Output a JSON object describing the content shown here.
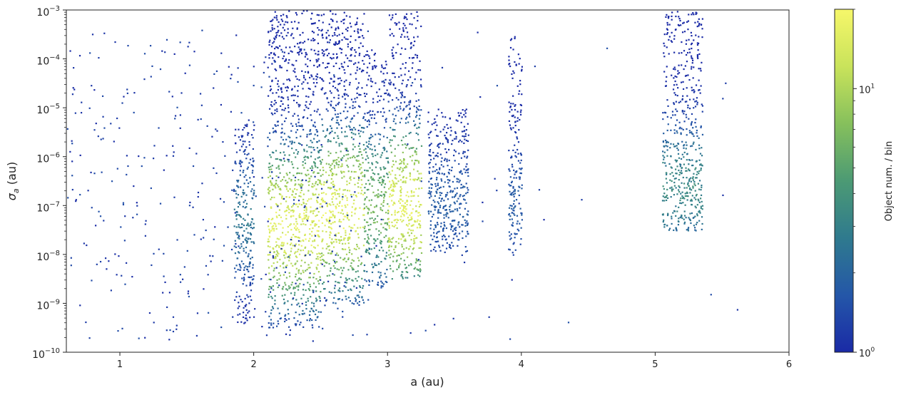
{
  "chart_data": {
    "type": "heatmap",
    "title": "",
    "xlabel": "a (au)",
    "ylabel_base": "σ",
    "ylabel_sub": "a",
    "ylabel_unit": " (au)",
    "xscale": "linear",
    "yscale": "log",
    "xlim": [
      0.6,
      6.0
    ],
    "ylim": [
      1e-10,
      0.001
    ],
    "xticks": [
      {
        "value": 1,
        "label": "1"
      },
      {
        "value": 2,
        "label": "2"
      },
      {
        "value": 3,
        "label": "3"
      },
      {
        "value": 4,
        "label": "4"
      },
      {
        "value": 5,
        "label": "5"
      },
      {
        "value": 6,
        "label": "6"
      }
    ],
    "yticks": [
      {
        "value": 1e-10,
        "base": "10",
        "exp": "−10"
      },
      {
        "value": 1e-09,
        "base": "10",
        "exp": "−9"
      },
      {
        "value": 1e-08,
        "base": "10",
        "exp": "−8"
      },
      {
        "value": 1e-07,
        "base": "10",
        "exp": "−7"
      },
      {
        "value": 1e-06,
        "base": "10",
        "exp": "−6"
      },
      {
        "value": 1e-05,
        "base": "10",
        "exp": "−5"
      },
      {
        "value": 0.0001,
        "base": "10",
        "exp": "−4"
      },
      {
        "value": 0.001,
        "base": "10",
        "exp": "−3"
      }
    ],
    "grid": false,
    "colorbar": {
      "label": "Object num. / bin",
      "scale": "log",
      "range": [
        1,
        20
      ],
      "colormap": [
        "#1a2aa6",
        "#2457a8",
        "#2f7a8e",
        "#4c9a74",
        "#86c05c",
        "#c9e35b",
        "#f6f76a"
      ],
      "ticks": [
        {
          "value": 1,
          "base": "10",
          "exp": "0"
        },
        {
          "value": 10,
          "base": "10",
          "exp": "1"
        }
      ]
    },
    "clusters": [
      {
        "a_range": [
          1.85,
          2.0
        ],
        "log_sigma_range": [
          -9.4,
          -5.2
        ],
        "peak_log_sigma": -7.3,
        "peak_count": 3
      },
      {
        "a_range": [
          2.1,
          2.5
        ],
        "log_sigma_range": [
          -9.5,
          -3.0
        ],
        "peak_log_sigma": -7.4,
        "peak_count": 20
      },
      {
        "a_range": [
          2.5,
          2.82
        ],
        "log_sigma_range": [
          -9.0,
          -3.0
        ],
        "peak_log_sigma": -7.1,
        "peak_count": 20
      },
      {
        "a_range": [
          2.82,
          3.0
        ],
        "log_sigma_range": [
          -8.7,
          -3.8
        ],
        "peak_log_sigma": -7.0,
        "peak_count": 8
      },
      {
        "a_range": [
          3.0,
          3.25
        ],
        "log_sigma_range": [
          -8.5,
          -3.0
        ],
        "peak_log_sigma": -7.0,
        "peak_count": 20
      },
      {
        "a_range": [
          3.3,
          3.6
        ],
        "log_sigma_range": [
          -8.0,
          -5.0
        ],
        "peak_log_sigma": -7.0,
        "peak_count": 2
      },
      {
        "a_range": [
          3.9,
          4.0
        ],
        "log_sigma_range": [
          -8.0,
          -3.5
        ],
        "peak_log_sigma": -7.0,
        "peak_count": 2
      },
      {
        "a_range": [
          5.05,
          5.35
        ],
        "log_sigma_range": [
          -7.5,
          -3.0
        ],
        "peak_log_sigma": -6.6,
        "peak_count": 4
      }
    ]
  }
}
